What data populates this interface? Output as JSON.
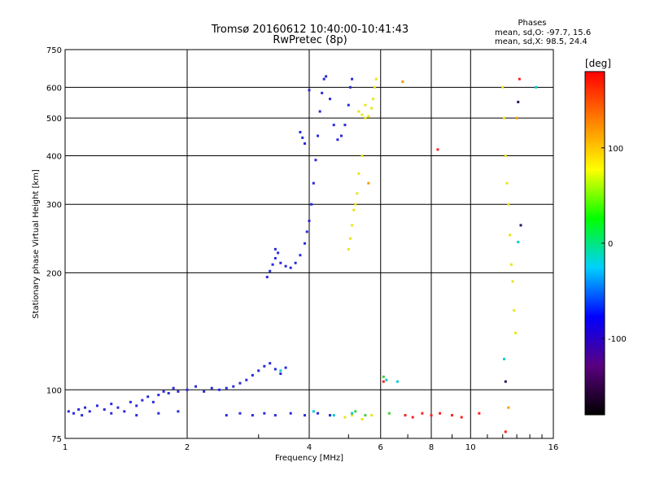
{
  "chart_data": {
    "type": "scatter",
    "title": "Tromsø 20160612 10:40:00-10:41:43",
    "subtitle": "RwPretec (8p)",
    "xlabel": "Frequency [MHz]",
    "ylabel": "Stationary phase Virtual Height [km]",
    "x_scale": "log2",
    "y_scale": "log",
    "xlim": [
      1,
      16
    ],
    "ylim": [
      75,
      750
    ],
    "x_ticks": [
      {
        "value": 1,
        "label": "1"
      },
      {
        "value": 2,
        "label": "2"
      },
      {
        "value": 4,
        "label": "4"
      },
      {
        "value": 6,
        "label": "6"
      },
      {
        "value": 8,
        "label": "8"
      },
      {
        "value": 10,
        "label": "10"
      },
      {
        "value": 16,
        "label": "16"
      }
    ],
    "y_ticks": [
      {
        "value": 75,
        "label": "75"
      },
      {
        "value": 100,
        "label": "100"
      },
      {
        "value": 200,
        "label": "200"
      },
      {
        "value": 300,
        "label": "300"
      },
      {
        "value": 400,
        "label": "400"
      },
      {
        "value": 500,
        "label": "500"
      },
      {
        "value": 600,
        "label": "600"
      },
      {
        "value": 750,
        "label": "750"
      }
    ],
    "grid": true,
    "stats": {
      "header": "Phases",
      "line_o": "mean, sd,O: -97.7, 15.6",
      "line_x": "mean, sd,X:  98.5, 24.4"
    },
    "colorbar": {
      "title": "[deg]",
      "range": [
        -180,
        180
      ],
      "ticks": [
        {
          "value": 100,
          "label": "100"
        },
        {
          "value": 0,
          "label": "0"
        },
        {
          "value": -100,
          "label": "-100"
        }
      ],
      "colors": [
        "#000000",
        "#5a0080",
        "#0000ff",
        "#00d0ff",
        "#00ff00",
        "#ffff00",
        "#ff8000",
        "#ff0000"
      ]
    },
    "series": [
      {
        "color": "#2a2adc",
        "phase": -100,
        "points": [
          [
            1.02,
            88
          ],
          [
            1.05,
            87
          ],
          [
            1.08,
            89
          ],
          [
            1.12,
            90
          ],
          [
            1.15,
            88
          ],
          [
            1.2,
            91
          ],
          [
            1.25,
            89
          ],
          [
            1.3,
            92
          ],
          [
            1.35,
            90
          ],
          [
            1.4,
            88
          ],
          [
            1.45,
            93
          ],
          [
            1.5,
            91
          ],
          [
            1.55,
            94
          ],
          [
            1.6,
            96
          ],
          [
            1.65,
            93
          ],
          [
            1.7,
            97
          ],
          [
            1.75,
            99
          ],
          [
            1.8,
            98
          ],
          [
            1.85,
            101
          ],
          [
            1.9,
            99
          ],
          [
            2.0,
            100
          ],
          [
            2.1,
            102
          ],
          [
            2.2,
            99
          ],
          [
            2.3,
            101
          ],
          [
            2.4,
            100
          ],
          [
            2.5,
            101
          ],
          [
            2.6,
            102
          ],
          [
            2.7,
            104
          ],
          [
            2.8,
            106
          ],
          [
            2.9,
            109
          ],
          [
            3.0,
            112
          ],
          [
            3.1,
            115
          ],
          [
            3.2,
            117
          ],
          [
            3.3,
            113
          ],
          [
            3.4,
            110
          ],
          [
            3.5,
            114
          ],
          [
            1.1,
            86
          ],
          [
            1.3,
            87
          ],
          [
            1.5,
            86
          ],
          [
            1.7,
            87
          ],
          [
            1.9,
            88
          ],
          [
            2.5,
            86
          ],
          [
            2.7,
            87
          ],
          [
            2.9,
            86
          ],
          [
            3.1,
            87
          ],
          [
            3.3,
            86
          ],
          [
            3.6,
            87
          ],
          [
            3.9,
            86
          ],
          [
            4.2,
            87
          ],
          [
            4.5,
            86
          ],
          [
            3.15,
            195
          ],
          [
            3.2,
            202
          ],
          [
            3.25,
            210
          ],
          [
            3.3,
            218
          ],
          [
            3.35,
            225
          ],
          [
            3.3,
            230
          ],
          [
            3.4,
            212
          ],
          [
            3.5,
            208
          ],
          [
            3.6,
            206
          ],
          [
            3.7,
            212
          ],
          [
            3.8,
            222
          ],
          [
            3.9,
            238
          ],
          [
            3.95,
            255
          ],
          [
            4.0,
            272
          ],
          [
            4.05,
            300
          ],
          [
            4.1,
            340
          ],
          [
            4.15,
            390
          ],
          [
            4.2,
            450
          ],
          [
            4.25,
            520
          ],
          [
            4.3,
            580
          ],
          [
            4.35,
            630
          ],
          [
            4.4,
            640
          ],
          [
            4.5,
            560
          ],
          [
            4.6,
            480
          ],
          [
            4.7,
            440
          ],
          [
            4.8,
            450
          ],
          [
            4.9,
            480
          ],
          [
            5.0,
            540
          ],
          [
            5.05,
            600
          ],
          [
            5.1,
            630
          ],
          [
            3.9,
            430
          ],
          [
            3.85,
            445
          ],
          [
            3.8,
            460
          ],
          [
            4.0,
            590
          ]
        ]
      },
      {
        "color": "#e6e61a",
        "phase": 100,
        "points": [
          [
            5.3,
            520
          ],
          [
            5.4,
            510
          ],
          [
            5.5,
            500
          ],
          [
            5.6,
            505
          ],
          [
            5.7,
            530
          ],
          [
            5.75,
            560
          ],
          [
            5.8,
            600
          ],
          [
            5.85,
            630
          ],
          [
            5.5,
            540
          ],
          [
            5.0,
            230
          ],
          [
            5.05,
            245
          ],
          [
            5.1,
            265
          ],
          [
            5.15,
            290
          ],
          [
            5.2,
            300
          ],
          [
            5.25,
            320
          ],
          [
            5.3,
            360
          ],
          [
            5.4,
            400
          ],
          [
            4.9,
            85
          ],
          [
            5.1,
            86
          ],
          [
            5.4,
            84
          ],
          [
            5.7,
            86
          ],
          [
            12.0,
            600
          ],
          [
            12.1,
            500
          ],
          [
            12.2,
            400
          ],
          [
            12.3,
            340
          ],
          [
            12.4,
            300
          ],
          [
            12.5,
            250
          ],
          [
            12.6,
            210
          ],
          [
            12.7,
            190
          ],
          [
            12.8,
            160
          ],
          [
            12.9,
            140
          ]
        ]
      },
      {
        "color": "#ff2020",
        "phase": 175,
        "points": [
          [
            6.9,
            86
          ],
          [
            7.2,
            85
          ],
          [
            7.6,
            87
          ],
          [
            8.0,
            86
          ],
          [
            8.4,
            87
          ],
          [
            9.0,
            86
          ],
          [
            9.5,
            85
          ],
          [
            10.5,
            87
          ],
          [
            12.2,
            78
          ],
          [
            13.2,
            630
          ],
          [
            8.3,
            415
          ],
          [
            6.1,
            105
          ]
        ]
      },
      {
        "color": "#00cccc",
        "phase": -30,
        "points": [
          [
            3.4,
            112
          ],
          [
            4.1,
            88
          ],
          [
            4.6,
            86
          ],
          [
            5.1,
            87
          ],
          [
            6.2,
            106
          ],
          [
            6.6,
            105
          ],
          [
            12.1,
            120
          ],
          [
            13.1,
            240
          ],
          [
            14.5,
            600
          ]
        ]
      },
      {
        "color": "#40d040",
        "phase": 20,
        "points": [
          [
            5.2,
            88
          ],
          [
            5.5,
            86
          ],
          [
            6.1,
            108
          ],
          [
            6.3,
            87
          ]
        ]
      },
      {
        "color": "#ff9a00",
        "phase": 140,
        "points": [
          [
            6.8,
            620
          ],
          [
            12.4,
            90
          ],
          [
            13.0,
            500
          ],
          [
            5.6,
            340
          ]
        ]
      },
      {
        "color": "#301060",
        "phase": -150,
        "points": [
          [
            12.2,
            105
          ],
          [
            13.1,
            550
          ],
          [
            13.3,
            265
          ]
        ]
      }
    ]
  }
}
